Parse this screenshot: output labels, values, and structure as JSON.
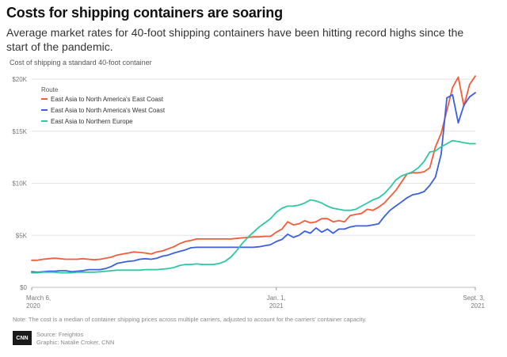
{
  "header": {
    "title": "Costs for shipping containers are soaring",
    "subtitle": "Average market rates for 40-foot shipping containers have been hitting record highs since the start of the pandemic.",
    "caption": "Cost of shipping a standard 40-foot container"
  },
  "footer": {
    "note": "Note: The cost is a median of container shipping prices across multiple carriers, adjusted to account for the carriers' container capacity.",
    "logo": "CNN",
    "source": "Source: Freightos",
    "graphic": "Graphic: Natalie Croker, CNN"
  },
  "colors": {
    "east_coast": "#f25c3b",
    "west_coast": "#3b5fe0",
    "northern_europe": "#2fc7a3",
    "grid": "#e3e3e3",
    "axis_text": "#777777"
  },
  "chart_data": {
    "type": "line",
    "title": "Costs for shipping containers are soaring",
    "ylabel": "Cost of shipping a standard 40-foot container",
    "ylim": [
      0,
      20000
    ],
    "yticks": [
      {
        "value": 0,
        "label": "$0"
      },
      {
        "value": 5000,
        "label": "$5K"
      },
      {
        "value": 10000,
        "label": "$10K"
      },
      {
        "value": 15000,
        "label": "$15K"
      },
      {
        "value": 20000,
        "label": "$20K"
      }
    ],
    "xlim": [
      0,
      78
    ],
    "xticks": [
      {
        "x": 0,
        "line1": "March 6,",
        "line2": "2020"
      },
      {
        "x": 43,
        "line1": "Jan. 1,",
        "line2": "2021"
      },
      {
        "x": 78,
        "line1": "Sept. 3,",
        "line2": "2021"
      }
    ],
    "legend_title": "Route",
    "legend_position": "top-left",
    "series": [
      {
        "name": "East Asia to North America's East Coast",
        "color": "#f25c3b",
        "x": [
          0,
          1,
          2,
          3,
          4,
          5,
          6,
          7,
          8,
          9,
          10,
          11,
          12,
          13,
          14,
          15,
          16,
          17,
          18,
          19,
          20,
          21,
          22,
          23,
          24,
          25,
          26,
          27,
          28,
          29,
          30,
          31,
          32,
          33,
          34,
          35,
          36,
          37,
          38,
          39,
          40,
          41,
          42,
          43,
          44,
          45,
          46,
          47,
          48,
          49,
          50,
          51,
          52,
          53,
          54,
          55,
          56,
          57,
          58,
          59,
          60,
          61,
          62,
          63,
          64,
          65,
          66,
          67,
          68,
          69,
          70,
          71,
          72,
          73,
          74,
          75,
          76,
          77,
          78
        ],
        "values": [
          2600,
          2600,
          2700,
          2750,
          2800,
          2750,
          2700,
          2700,
          2700,
          2750,
          2700,
          2650,
          2700,
          2800,
          2900,
          3100,
          3200,
          3300,
          3400,
          3350,
          3300,
          3200,
          3400,
          3500,
          3700,
          3900,
          4200,
          4400,
          4500,
          4650,
          4650,
          4650,
          4650,
          4650,
          4650,
          4650,
          4700,
          4750,
          4800,
          4850,
          4850,
          4900,
          4900,
          5300,
          5600,
          6300,
          6000,
          6100,
          6400,
          6200,
          6300,
          6600,
          6600,
          6300,
          6400,
          6300,
          6900,
          7000,
          7100,
          7500,
          7400,
          7700,
          8100,
          8700,
          9300,
          10100,
          10900,
          11000,
          11000,
          11100,
          11500,
          13500,
          14800,
          17000,
          19200,
          20200,
          17400,
          19500,
          20300
        ],
        "end_x": 78
      },
      {
        "name": "East Asia to North America's West Coast",
        "color": "#3b5fe0",
        "x": [
          0,
          1,
          2,
          3,
          4,
          5,
          6,
          7,
          8,
          9,
          10,
          11,
          12,
          13,
          14,
          15,
          16,
          17,
          18,
          19,
          20,
          21,
          22,
          23,
          24,
          25,
          26,
          27,
          28,
          29,
          30,
          31,
          32,
          33,
          34,
          35,
          36,
          37,
          38,
          39,
          40,
          41,
          42,
          43,
          44,
          45,
          46,
          47,
          48,
          49,
          50,
          51,
          52,
          53,
          54,
          55,
          56,
          57,
          58,
          59,
          60,
          61,
          62,
          63,
          64,
          65,
          66,
          67,
          68,
          69,
          70,
          71,
          72,
          73,
          74,
          75,
          76,
          77,
          78
        ],
        "values": [
          1500,
          1450,
          1500,
          1550,
          1550,
          1600,
          1600,
          1500,
          1550,
          1600,
          1700,
          1700,
          1700,
          1800,
          2000,
          2300,
          2400,
          2500,
          2550,
          2700,
          2750,
          2700,
          2800,
          3000,
          3100,
          3300,
          3450,
          3600,
          3800,
          3850,
          3850,
          3850,
          3850,
          3850,
          3850,
          3850,
          3850,
          3850,
          3850,
          3850,
          3900,
          4000,
          4100,
          4400,
          4600,
          5100,
          4800,
          5000,
          5400,
          5200,
          5700,
          5300,
          5600,
          5200,
          5600,
          5600,
          5800,
          5900,
          5900,
          5900,
          6000,
          6100,
          6800,
          7400,
          7800,
          8200,
          8600,
          8900,
          9000,
          9200,
          9800,
          10600,
          12800,
          18200,
          18500,
          15800,
          17500,
          18300,
          18700
        ],
        "end_x": 78
      },
      {
        "name": "East Asia to Northern Europe",
        "color": "#2fc7a3",
        "x": [
          0,
          1,
          2,
          3,
          4,
          5,
          6,
          7,
          8,
          9,
          10,
          11,
          12,
          13,
          14,
          15,
          16,
          17,
          18,
          19,
          20,
          21,
          22,
          23,
          24,
          25,
          26,
          27,
          28,
          29,
          30,
          31,
          32,
          33,
          34,
          35,
          36,
          37,
          38,
          39,
          40,
          41,
          42,
          43,
          44,
          45,
          46,
          47,
          48,
          49,
          50,
          51,
          52,
          53,
          54,
          55,
          56,
          57,
          58,
          59,
          60,
          61,
          62,
          63,
          64,
          65,
          66,
          67,
          68,
          69,
          70,
          71,
          72,
          73,
          74,
          75,
          76,
          77,
          78
        ],
        "values": [
          1400,
          1400,
          1450,
          1450,
          1450,
          1400,
          1400,
          1400,
          1450,
          1450,
          1450,
          1450,
          1500,
          1550,
          1600,
          1650,
          1650,
          1650,
          1650,
          1650,
          1700,
          1700,
          1700,
          1750,
          1800,
          1900,
          2100,
          2200,
          2200,
          2250,
          2200,
          2200,
          2200,
          2300,
          2500,
          2900,
          3500,
          4200,
          4800,
          5300,
          5800,
          6200,
          6600,
          7200,
          7600,
          7800,
          7800,
          7900,
          8100,
          8400,
          8300,
          8100,
          7800,
          7600,
          7500,
          7400,
          7400,
          7500,
          7800,
          8100,
          8400,
          8600,
          9000,
          9600,
          10300,
          10700,
          10900,
          11100,
          11500,
          12100,
          13000,
          13100,
          13500,
          13800,
          14100,
          14000,
          13900,
          13800,
          13800
        ],
        "end_x": 78
      }
    ]
  }
}
